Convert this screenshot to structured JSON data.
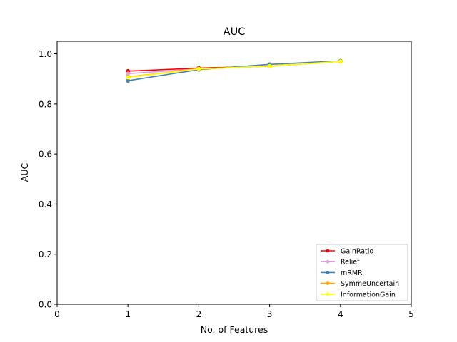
{
  "chart_data": {
    "type": "line",
    "title": "AUC",
    "xlabel": "No. of Features",
    "ylabel": "AUC",
    "xlim": [
      0,
      5
    ],
    "ylim": [
      0,
      1.05
    ],
    "xticks": [
      "0",
      "1",
      "2",
      "3",
      "4",
      "5"
    ],
    "yticks": [
      "0.0",
      "0.2",
      "0.4",
      "0.6",
      "0.8",
      "1.0"
    ],
    "grid": false,
    "legend_position": "bottom-right",
    "x": [
      1,
      2,
      3,
      4
    ],
    "series": [
      {
        "name": "GainRatio",
        "color": "#ff0000",
        "values": [
          0.931,
          0.943,
          0.951,
          0.97
        ]
      },
      {
        "name": "Relief",
        "color": "#dda0dd",
        "values": [
          0.921,
          0.94,
          0.951,
          0.97
        ]
      },
      {
        "name": "mRMR",
        "color": "#4682b4",
        "values": [
          0.893,
          0.937,
          0.958,
          0.972
        ]
      },
      {
        "name": "SymmeUncertain",
        "color": "#ffa500",
        "values": [
          0.908,
          0.94,
          0.951,
          0.97
        ]
      },
      {
        "name": "InformationGain",
        "color": "#ffff00",
        "values": [
          0.906,
          0.94,
          0.951,
          0.97
        ]
      }
    ]
  }
}
